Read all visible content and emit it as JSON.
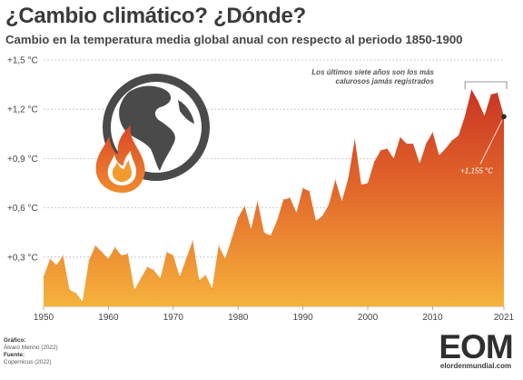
{
  "chart_data": {
    "type": "area",
    "title": "¿Cambio climático? ¿Dónde?",
    "subtitle": "Cambio en la temperatura media global anual con respecto al periodo 1850-1900",
    "x": [
      1950,
      1951,
      1952,
      1953,
      1954,
      1955,
      1956,
      1957,
      1958,
      1959,
      1960,
      1961,
      1962,
      1963,
      1964,
      1965,
      1966,
      1967,
      1968,
      1969,
      1970,
      1971,
      1972,
      1973,
      1974,
      1975,
      1976,
      1977,
      1978,
      1979,
      1980,
      1981,
      1982,
      1983,
      1984,
      1985,
      1986,
      1987,
      1988,
      1989,
      1990,
      1991,
      1992,
      1993,
      1994,
      1995,
      1996,
      1997,
      1998,
      1999,
      2000,
      2001,
      2002,
      2003,
      2004,
      2005,
      2006,
      2007,
      2008,
      2009,
      2010,
      2011,
      2012,
      2013,
      2014,
      2015,
      2016,
      2017,
      2018,
      2019,
      2020,
      2021
    ],
    "series": [
      {
        "values": [
          0.18,
          0.29,
          0.25,
          0.31,
          0.1,
          0.08,
          0.03,
          0.28,
          0.37,
          0.33,
          0.29,
          0.36,
          0.31,
          0.32,
          0.1,
          0.17,
          0.24,
          0.22,
          0.17,
          0.33,
          0.31,
          0.18,
          0.29,
          0.4,
          0.16,
          0.19,
          0.11,
          0.37,
          0.29,
          0.41,
          0.54,
          0.61,
          0.47,
          0.64,
          0.45,
          0.43,
          0.52,
          0.65,
          0.66,
          0.57,
          0.72,
          0.7,
          0.52,
          0.55,
          0.62,
          0.77,
          0.64,
          0.78,
          1.02,
          0.74,
          0.75,
          0.88,
          0.95,
          0.96,
          0.9,
          1.03,
          0.99,
          0.99,
          0.87,
          0.99,
          1.06,
          0.92,
          0.96,
          1.01,
          1.04,
          1.16,
          1.32,
          1.25,
          1.16,
          1.29,
          1.3,
          1.155
        ]
      }
    ],
    "xticks": [
      "1950",
      "1960",
      "1970",
      "1980",
      "1990",
      "2000",
      "2010",
      "2021"
    ],
    "yticks": [
      "+0,3 °C",
      "+0,6 °C",
      "+0,9 °C",
      "+1,2 °C",
      "+1,5 °C"
    ],
    "ytick_values": [
      0.3,
      0.6,
      0.9,
      1.2,
      1.5
    ],
    "xlim": [
      1950,
      2021
    ],
    "ylim": [
      0,
      1.5
    ],
    "grid": true,
    "annotations": [
      {
        "text_lines": [
          "Los últimos siete años son los más",
          "calurosos jamás registrados"
        ],
        "span": [
          2015,
          2021
        ]
      },
      {
        "text": "+1,155 °C",
        "x": 2021,
        "y": 1.155
      }
    ],
    "colors": {
      "area_top": "#c93524",
      "area_bottom": "#f6b23c",
      "grid": "#bdbdbd",
      "text": "#444444"
    }
  },
  "credits": {
    "graphic_label": "Gráfico:",
    "graphic_author": "Álvaro Merino (2022)",
    "source_label": "Fuente:",
    "source": "Copernicus (2022)"
  },
  "logo": {
    "mark": "EOM",
    "url": "elordenmundial.com"
  }
}
